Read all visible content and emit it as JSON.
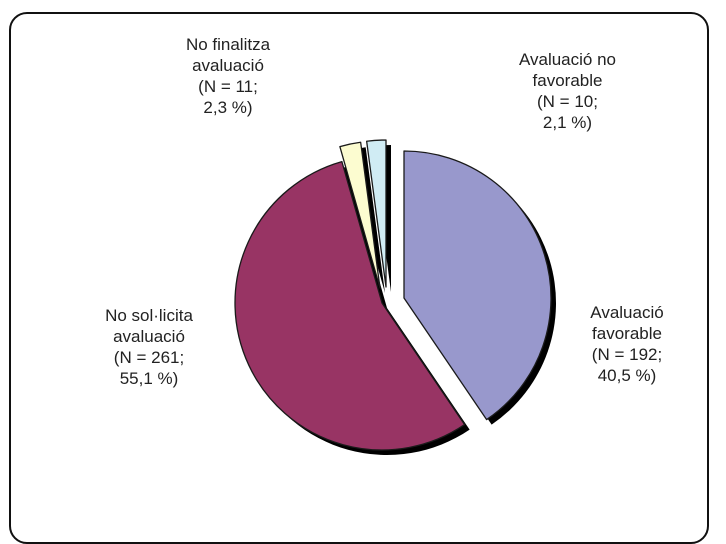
{
  "chart_data": {
    "type": "pie",
    "slices": [
      {
        "name": "Avaluació favorable",
        "count": 192,
        "percent": 40.5,
        "color": "#9898cc",
        "label_lines": [
          "Avaluació",
          "favorable",
          "(N = 192;",
          "40,5 %)"
        ]
      },
      {
        "name": "No sol·licita avaluació",
        "count": 261,
        "percent": 55.1,
        "color": "#983464",
        "label_lines": [
          "No sol·licita",
          "avaluació",
          "(N = 261;",
          "55,1 %)"
        ]
      },
      {
        "name": "No finalitza avaluació",
        "count": 11,
        "percent": 2.3,
        "color": "#fcfcd0",
        "label_lines": [
          "No finalitza",
          "avaluació",
          "(N = 11;",
          "2,3 %)"
        ]
      },
      {
        "name": "Avaluació no favorable",
        "count": 10,
        "percent": 2.1,
        "color": "#d0ecf4",
        "label_lines": [
          "Avaluació  no",
          "favorable",
          "(N = 10;",
          "2,1 %)"
        ]
      }
    ]
  }
}
